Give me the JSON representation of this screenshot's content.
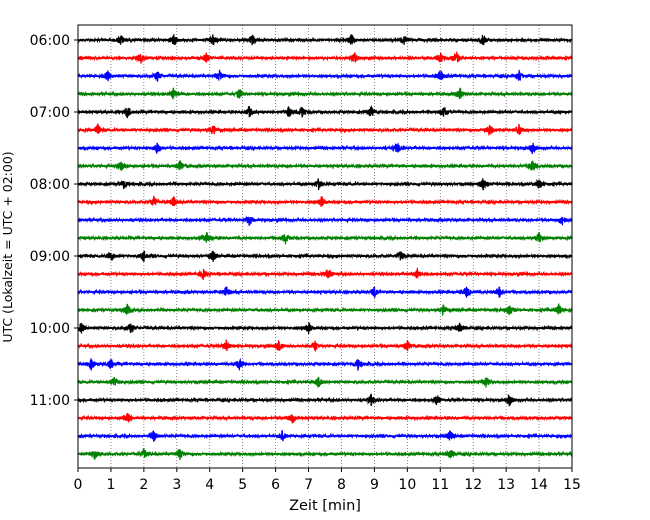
{
  "chart_data": {
    "type": "line",
    "title": "",
    "xlabel": "Zeit  [min]",
    "ylabel": "UTC (Lokalzeit = UTC + 02:00)",
    "xlim": [
      0,
      15
    ],
    "x_ticks": [
      "0",
      "1",
      "2",
      "3",
      "4",
      "5",
      "6",
      "7",
      "8",
      "9",
      "10",
      "11",
      "12",
      "13",
      "14",
      "15"
    ],
    "y_tick_labels": [
      "06:00",
      "07:00",
      "08:00",
      "09:00",
      "10:00",
      "11:00"
    ],
    "grid": "vertical dotted at each minute",
    "trace_interval_minutes": 15,
    "start_time": "06:00",
    "series_colors": [
      "#000000",
      "#ff0000",
      "#0000ff",
      "#008000"
    ],
    "series": [
      {
        "start": "06:00",
        "color": "#000000",
        "events": [
          1.3,
          2.9,
          4.1,
          5.3,
          8.3,
          9.9,
          12.3
        ]
      },
      {
        "start": "06:15",
        "color": "#ff0000",
        "events": [
          1.9,
          3.9,
          8.4,
          11.0,
          11.5
        ]
      },
      {
        "start": "06:30",
        "color": "#0000ff",
        "events": [
          0.9,
          2.4,
          4.3,
          11.0,
          13.4
        ]
      },
      {
        "start": "06:45",
        "color": "#008000",
        "events": [
          2.9,
          4.9,
          11.6
        ]
      },
      {
        "start": "07:00",
        "color": "#000000",
        "events": [
          1.5,
          5.2,
          6.4,
          6.8,
          8.9,
          11.1
        ]
      },
      {
        "start": "07:15",
        "color": "#ff0000",
        "events": [
          0.6,
          4.1,
          12.5,
          13.4
        ]
      },
      {
        "start": "07:30",
        "color": "#0000ff",
        "events": [
          2.4,
          9.7,
          13.8
        ]
      },
      {
        "start": "07:45",
        "color": "#008000",
        "events": [
          1.3,
          3.1,
          13.8
        ]
      },
      {
        "start": "08:00",
        "color": "#000000",
        "events": [
          1.4,
          7.3,
          12.3,
          14.0
        ]
      },
      {
        "start": "08:15",
        "color": "#ff0000",
        "events": [
          2.3,
          2.9,
          7.4
        ]
      },
      {
        "start": "08:30",
        "color": "#0000ff",
        "events": [
          5.2,
          14.7
        ]
      },
      {
        "start": "08:45",
        "color": "#008000",
        "events": [
          3.9,
          6.3,
          14.0
        ]
      },
      {
        "start": "09:00",
        "color": "#000000",
        "events": [
          1.0,
          2.0,
          4.1,
          9.8
        ]
      },
      {
        "start": "09:15",
        "color": "#ff0000",
        "events": [
          3.8,
          7.6,
          10.3
        ]
      },
      {
        "start": "09:30",
        "color": "#0000ff",
        "events": [
          4.5,
          9.0,
          11.8,
          12.8
        ]
      },
      {
        "start": "09:45",
        "color": "#008000",
        "events": [
          1.5,
          11.1,
          13.1,
          14.6
        ]
      },
      {
        "start": "10:00",
        "color": "#000000",
        "events": [
          0.1,
          1.6,
          7.0,
          11.6
        ]
      },
      {
        "start": "10:15",
        "color": "#ff0000",
        "events": [
          4.5,
          6.1,
          7.2,
          10.0
        ]
      },
      {
        "start": "10:30",
        "color": "#0000ff",
        "events": [
          0.4,
          1.0,
          4.9,
          8.5
        ]
      },
      {
        "start": "10:45",
        "color": "#008000",
        "events": [
          1.1,
          7.3,
          12.4
        ]
      },
      {
        "start": "11:00",
        "color": "#000000",
        "events": [
          8.9,
          10.9,
          13.1
        ]
      },
      {
        "start": "11:15",
        "color": "#ff0000",
        "events": [
          1.5,
          6.5
        ]
      },
      {
        "start": "11:30",
        "color": "#0000ff",
        "events": [
          2.3,
          6.2,
          11.3
        ]
      },
      {
        "start": "11:45",
        "color": "#008000",
        "events": [
          0.5,
          2.0,
          3.1,
          11.3
        ]
      }
    ]
  }
}
